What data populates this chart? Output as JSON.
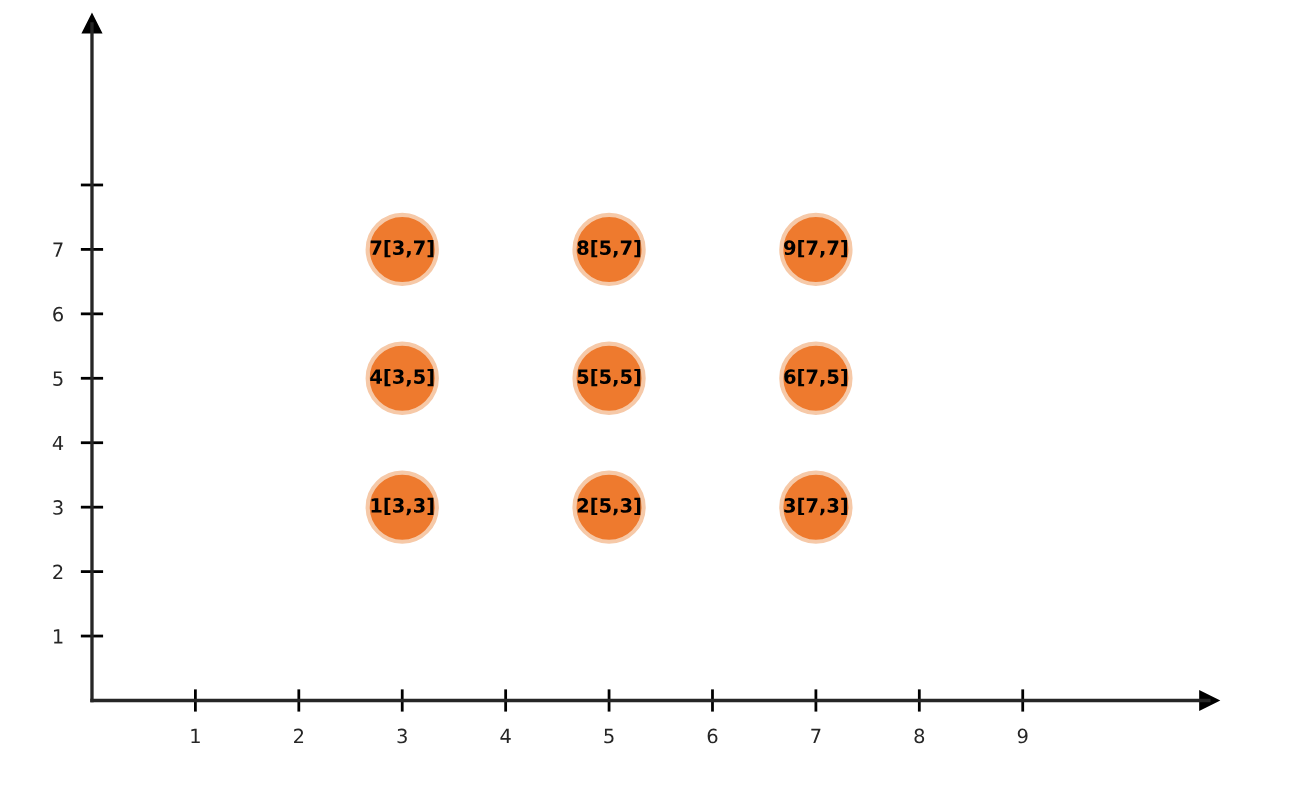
{
  "chart_data": {
    "type": "scatter",
    "x": [
      3,
      5,
      7,
      3,
      5,
      7,
      3,
      5,
      7
    ],
    "values": [
      3,
      3,
      3,
      5,
      5,
      5,
      7,
      7,
      7
    ],
    "color": "#ee7a2e",
    "marker": "circle",
    "xlim": [
      0,
      10.8
    ],
    "ylim": [
      0,
      10.5
    ],
    "xticks": [
      1,
      2,
      3,
      4,
      5,
      6,
      7,
      8,
      9
    ],
    "yticks": [
      1,
      2,
      3,
      4,
      5,
      6,
      7,
      {
        "value": 8,
        "label": null
      }
    ],
    "grid": false,
    "annotations": [
      {
        "text": "1[3,3]",
        "x": 3,
        "y": 3
      },
      {
        "text": "2[5,3]",
        "x": 5,
        "y": 3
      },
      {
        "text": "3[7,3]",
        "x": 7,
        "y": 3
      },
      {
        "text": "4[3,5]",
        "x": 3,
        "y": 5
      },
      {
        "text": "5[5,5]",
        "x": 5,
        "y": 5
      },
      {
        "text": "6[7,5]",
        "x": 7,
        "y": 5
      },
      {
        "text": "7[3,7]",
        "x": 3,
        "y": 7
      },
      {
        "text": "8[5,7]",
        "x": 5,
        "y": 7
      },
      {
        "text": "9[7,7]",
        "x": 7,
        "y": 7
      }
    ]
  }
}
